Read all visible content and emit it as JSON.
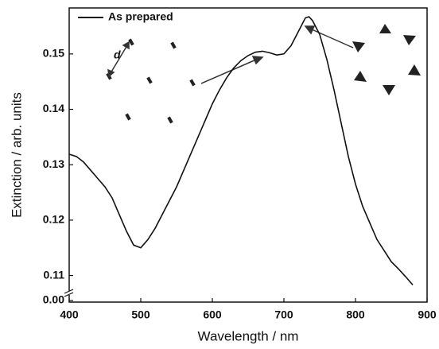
{
  "chart_data": {
    "type": "line",
    "xlabel": "Wavelength / nm",
    "ylabel": "Extinction / arb. units",
    "annotation": "d",
    "x": [
      400,
      410,
      420,
      430,
      440,
      450,
      460,
      470,
      480,
      490,
      500,
      510,
      520,
      530,
      540,
      550,
      560,
      570,
      580,
      590,
      600,
      610,
      620,
      630,
      640,
      650,
      660,
      670,
      680,
      690,
      700,
      710,
      720,
      730,
      735,
      740,
      750,
      760,
      770,
      780,
      790,
      800,
      810,
      820,
      830,
      840,
      850,
      860,
      870,
      880
    ],
    "series": [
      {
        "name": "As prepared",
        "color": "#111111",
        "values": [
          0.1319,
          0.1315,
          0.1305,
          0.129,
          0.1275,
          0.126,
          0.124,
          0.121,
          0.118,
          0.1155,
          0.115,
          0.1165,
          0.1185,
          0.121,
          0.1235,
          0.126,
          0.129,
          0.132,
          0.135,
          0.138,
          0.141,
          0.1435,
          0.1457,
          0.1475,
          0.1488,
          0.1497,
          0.1503,
          0.1505,
          0.1502,
          0.1498,
          0.15,
          0.1515,
          0.154,
          0.1565,
          0.1567,
          0.156,
          0.1535,
          0.149,
          0.1435,
          0.1375,
          0.1315,
          0.1265,
          0.1225,
          0.1195,
          0.1165,
          0.1145,
          0.1125,
          0.1112,
          0.1098,
          0.1083
        ]
      }
    ],
    "xlim": [
      400,
      900
    ],
    "xticks": [
      400,
      500,
      600,
      700,
      800,
      900
    ],
    "ylim": [
      0.1075,
      0.1583
    ],
    "broken_axis": true,
    "yticks": [
      {
        "value": 0,
        "label": "0.00"
      },
      0.11,
      0.12,
      0.13,
      0.14,
      0.15
    ],
    "legend": "upper left"
  }
}
